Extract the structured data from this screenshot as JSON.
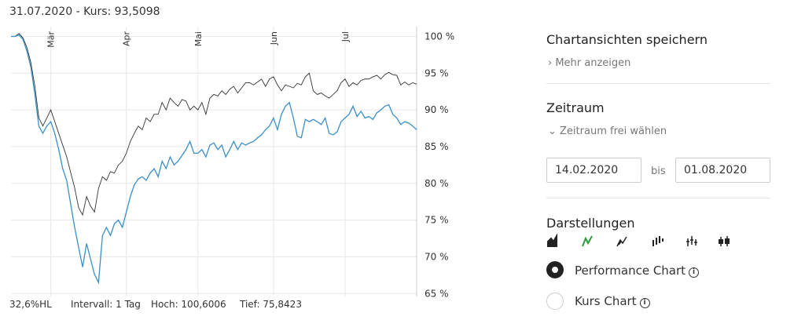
{
  "header": {
    "title": "31.07.2020  -  Kurs: 93,5098"
  },
  "chart_data": {
    "type": "line",
    "ylim": [
      64.6,
      100.9
    ],
    "yticks": [
      {
        "value": 65,
        "label": "65 %"
      },
      {
        "value": 70,
        "label": "70 %"
      },
      {
        "value": 75,
        "label": "75 %"
      },
      {
        "value": 80,
        "label": "80 %"
      },
      {
        "value": 85,
        "label": "85 %"
      },
      {
        "value": 90,
        "label": "90 %"
      },
      {
        "value": 95,
        "label": "95 %"
      },
      {
        "value": 100,
        "label": "100 %"
      }
    ],
    "xlim": [
      0,
      102
    ],
    "xticks": [
      {
        "value": 10,
        "label": "Mär"
      },
      {
        "value": 29,
        "label": "Apr"
      },
      {
        "value": 47,
        "label": "Mai"
      },
      {
        "value": 66,
        "label": "Jun"
      },
      {
        "value": 84,
        "label": "Jul"
      }
    ],
    "grid": true,
    "series": [
      {
        "color": "#333333",
        "values": [
          100,
          100,
          100.4,
          99.8,
          98.5,
          96.4,
          93.2,
          88.9,
          87.8,
          88.9,
          90.0,
          88.4,
          86.8,
          85.2,
          83.6,
          81.5,
          79.4,
          76.7,
          75.7,
          78.2,
          76.9,
          76.1,
          79.3,
          80.9,
          80.4,
          81.6,
          81.4,
          82.5,
          83.0,
          84.1,
          85.7,
          86.8,
          87.8,
          87.3,
          88.9,
          88.4,
          89.4,
          89.4,
          91.0,
          90.0,
          91.6,
          91.0,
          90.5,
          91.4,
          91.2,
          90.0,
          90.5,
          90.0,
          91.0,
          89.4,
          91.6,
          92.1,
          91.9,
          92.6,
          92.1,
          92.8,
          93.2,
          92.3,
          93.0,
          93.7,
          93.7,
          93.4,
          93.8,
          94.2,
          93.2,
          94.2,
          94.5,
          93.4,
          92.6,
          93.4,
          93.2,
          93.0,
          93.6,
          93.4,
          94.5,
          95.0,
          92.6,
          92.1,
          92.3,
          91.9,
          91.6,
          92.1,
          92.6,
          93.7,
          94.2,
          93.2,
          93.7,
          93.4,
          94.0,
          94.2,
          94.2,
          94.5,
          94.7,
          94.2,
          94.8,
          95.1,
          94.8,
          94.7,
          93.4,
          93.8,
          93.4,
          93.7,
          93.5
        ]
      },
      {
        "color": "#3a8fc8",
        "values": [
          100,
          100,
          100.2,
          99.6,
          98.0,
          95.8,
          92.1,
          87.8,
          86.8,
          87.8,
          88.4,
          86.8,
          84.6,
          82.0,
          80.4,
          77.2,
          74.0,
          71.3,
          68.6,
          71.8,
          69.7,
          67.6,
          66.5,
          72.9,
          74.0,
          72.9,
          74.5,
          75.0,
          74.0,
          76.1,
          78.2,
          79.8,
          80.6,
          80.9,
          80.4,
          81.4,
          82.0,
          80.9,
          83.0,
          82.0,
          83.6,
          82.5,
          83.0,
          83.8,
          84.6,
          85.7,
          84.1,
          84.1,
          84.6,
          83.6,
          85.2,
          85.5,
          84.6,
          85.2,
          83.6,
          84.6,
          85.7,
          84.6,
          85.5,
          85.2,
          85.5,
          85.7,
          86.2,
          86.6,
          87.3,
          87.8,
          88.9,
          87.3,
          89.4,
          90.5,
          91.0,
          88.9,
          86.4,
          86.2,
          88.7,
          88.4,
          88.7,
          88.4,
          88.0,
          88.9,
          86.8,
          86.6,
          87.0,
          88.4,
          88.9,
          89.4,
          90.5,
          89.1,
          89.8,
          88.9,
          89.1,
          88.7,
          89.6,
          90.0,
          90.5,
          90.7,
          89.4,
          88.9,
          88.0,
          88.4,
          88.2,
          87.8,
          87.3
        ]
      }
    ]
  },
  "footer": {
    "range": "32,6%HL",
    "interval": "Intervall: 1 Tag",
    "high": "Hoch: 100,6006",
    "low": "Tief: 75,8423"
  },
  "sidebar": {
    "save_title": "Chartansichten speichern",
    "more": "Mehr anzeigen",
    "period_title": "Zeitraum",
    "period_free": "Zeitraum frei wählen",
    "date_from": "14.02.2020",
    "between": "bis",
    "date_to": "01.08.2020",
    "views_title": "Darstellungen",
    "options": [
      "Performance Chart",
      "Kurs Chart"
    ]
  }
}
